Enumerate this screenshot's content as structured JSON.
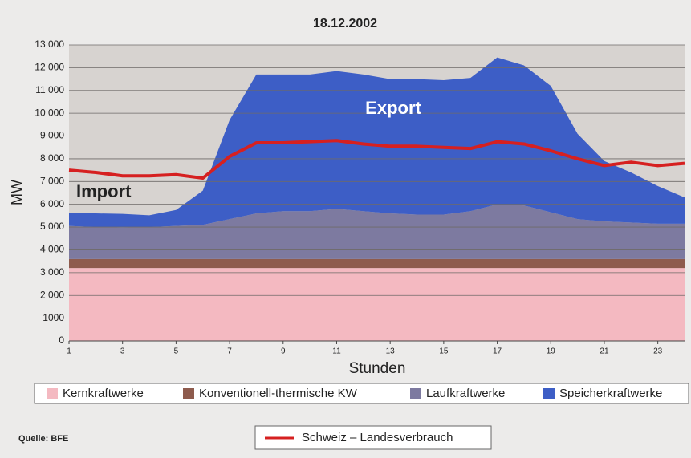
{
  "chart_data": {
    "type": "stacked_area",
    "title": "18.12.2002",
    "y_label": "MW",
    "x_label": "Stunden",
    "source": "Quelle: BFE",
    "annotations": [
      "Export",
      "Import"
    ],
    "x": [
      1,
      2,
      3,
      4,
      5,
      6,
      7,
      8,
      9,
      10,
      11,
      12,
      13,
      14,
      15,
      16,
      17,
      18,
      19,
      20,
      21,
      22,
      23,
      24
    ],
    "xlim": [
      1,
      24
    ],
    "xticks": [
      1,
      3,
      5,
      7,
      9,
      11,
      13,
      15,
      17,
      19,
      21,
      23
    ],
    "ylim": [
      0,
      13000
    ],
    "yticks": [
      0,
      1000,
      {
        "value": 2000,
        "label": "2 000"
      },
      {
        "value": 3000,
        "label": "3 000"
      },
      {
        "value": 4000,
        "label": "4 000"
      },
      {
        "value": 5000,
        "label": "5 000"
      },
      {
        "value": 6000,
        "label": "6 000"
      },
      {
        "value": 7000,
        "label": "7 000"
      },
      {
        "value": 8000,
        "label": "8 000"
      },
      {
        "value": 9000,
        "label": "9 000"
      },
      {
        "value": 10000,
        "label": "10 000"
      },
      {
        "value": 11000,
        "label": "11 000"
      },
      {
        "value": 12000,
        "label": "12 000"
      },
      {
        "value": 13000,
        "label": "13 000"
      }
    ],
    "grid": true,
    "series": [
      {
        "name": "Kernkraftwerke",
        "color": "#f4b9c1",
        "values": [
          3200,
          3200,
          3200,
          3200,
          3200,
          3200,
          3200,
          3200,
          3200,
          3200,
          3200,
          3200,
          3200,
          3200,
          3200,
          3200,
          3200,
          3200,
          3200,
          3200,
          3200,
          3200,
          3200,
          3200
        ]
      },
      {
        "name": "Konventionell-thermische KW",
        "color": "#8e5b4d",
        "values": [
          400,
          400,
          400,
          400,
          400,
          400,
          400,
          400,
          400,
          400,
          400,
          400,
          400,
          400,
          400,
          400,
          400,
          400,
          400,
          400,
          400,
          400,
          400,
          400
        ]
      },
      {
        "name": "Laufkraftwerke",
        "color": "#7d7aa0",
        "values": [
          1450,
          1400,
          1380,
          1400,
          1450,
          1500,
          1750,
          2000,
          2100,
          2100,
          2200,
          2100,
          2000,
          1950,
          1950,
          2100,
          2400,
          2350,
          2050,
          1750,
          1650,
          1600,
          1550,
          1550
        ]
      },
      {
        "name": "Speicherkraftwerke",
        "color": "#3d5ec6",
        "values": [
          550,
          600,
          600,
          520,
          700,
          1500,
          4350,
          6100,
          6000,
          6000,
          6050,
          6000,
          5900,
          5950,
          5900,
          5850,
          6450,
          6150,
          5550,
          3750,
          2650,
          2200,
          1650,
          1150
        ]
      }
    ],
    "lines": [
      {
        "name": "Schweiz – Landesverbrauch",
        "color": "#d62020",
        "values": [
          7500,
          7400,
          7250,
          7250,
          7300,
          7150,
          8100,
          8700,
          8700,
          8750,
          8800,
          8650,
          8550,
          8550,
          8500,
          8450,
          8750,
          8650,
          8350,
          8000,
          7700,
          7850,
          7700,
          7800
        ]
      }
    ]
  }
}
